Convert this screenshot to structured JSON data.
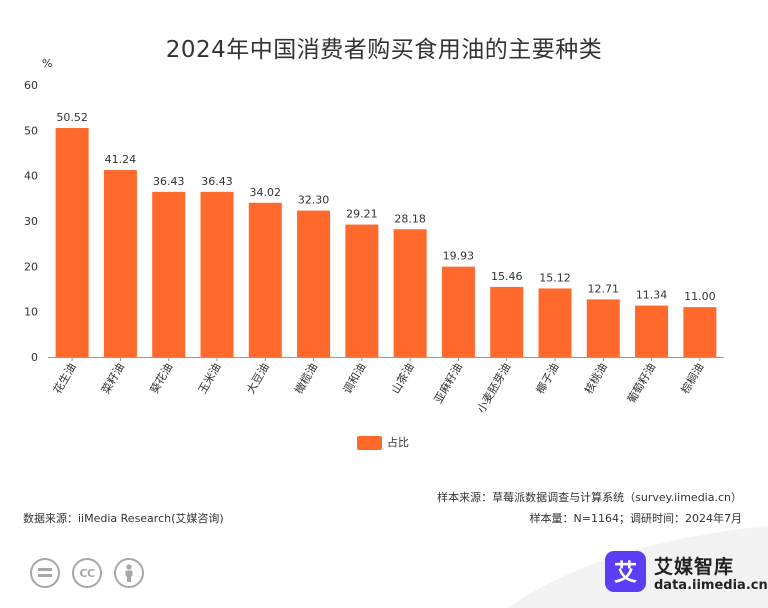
{
  "title": "2024年中国消费者购买食用油的主要种类",
  "chart_data": {
    "type": "bar",
    "title": "2024年中国消费者购买食用油的主要种类",
    "ylabel": "%",
    "xlabel": "",
    "ylim": [
      0,
      60
    ],
    "yticks": [
      0,
      10,
      20,
      30,
      40,
      50,
      60
    ],
    "categories": [
      "花生油",
      "菜籽油",
      "葵花油",
      "玉米油",
      "大豆油",
      "橄榄油",
      "调和油",
      "山茶油",
      "亚麻籽油",
      "小麦胚芽油",
      "椰子油",
      "核桃油",
      "葡萄籽油",
      "棕榈油"
    ],
    "series": [
      {
        "name": "占比",
        "values": [
          50.52,
          41.24,
          36.43,
          36.43,
          34.02,
          32.3,
          29.21,
          28.18,
          19.93,
          15.46,
          15.12,
          12.71,
          11.34,
          11.0
        ],
        "labels": [
          "50.52",
          "41.24",
          "36.43",
          "36.43",
          "34.02",
          "32.30",
          "29.21",
          "28.18",
          "19.93",
          "15.46",
          "15.12",
          "12.71",
          "11.34",
          "11.00"
        ]
      }
    ],
    "bar_color": "#ff6a2c",
    "grid": false,
    "legend": "bottom-center"
  },
  "legend_label": "占比",
  "source_left": "数据来源：iiMedia Research(艾媒咨询)",
  "source_right_1": "样本来源：草莓派数据调查与计算系统（survey.iimedia.cn）",
  "source_right_2": "样本量：N=1164；调研时间：2024年7月",
  "license": {
    "cc_label": "CC"
  },
  "brand": {
    "name": "艾媒智库",
    "url": "data.iimedia.cn",
    "logo_char": "艾",
    "logo_color": "#5b3df5"
  },
  "colors": {
    "bar": "#ff6a2c",
    "axis": "#999999",
    "text": "#333333",
    "corner": "#f2f2f2"
  }
}
